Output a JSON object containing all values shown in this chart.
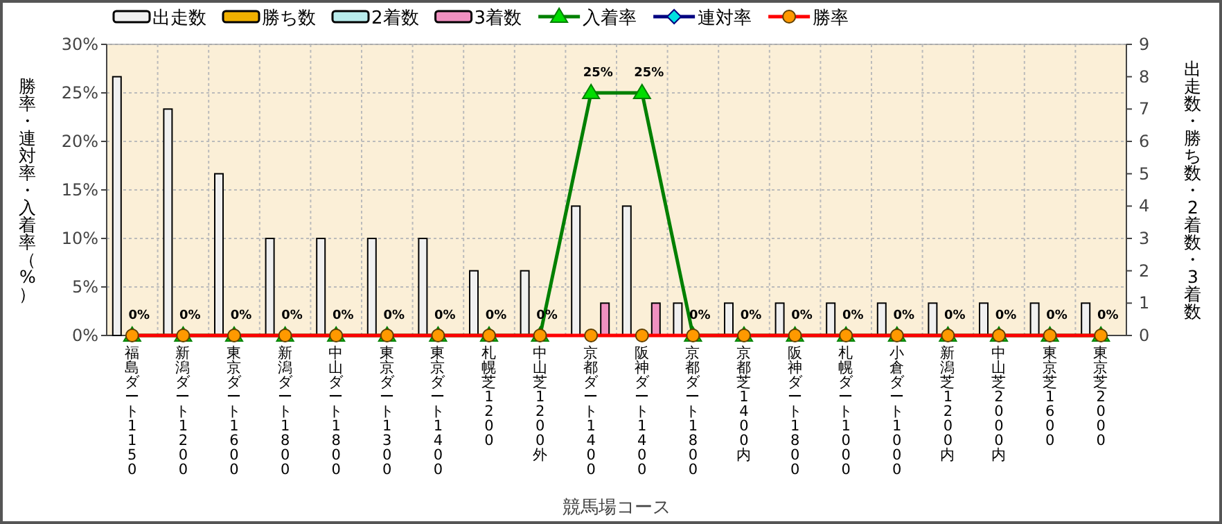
{
  "chart_data": {
    "type": "bar",
    "categories": [
      "福島ダート1150",
      "新潟ダート1200",
      "東京ダート1600",
      "新潟ダート1800",
      "中山ダート1800",
      "東京ダート1300",
      "東京ダート1400",
      "札幌芝1200",
      "中山芝1200外",
      "京都ダート1400",
      "阪神ダート1400",
      "京都ダート1800",
      "京都芝1400内",
      "阪神ダート1800",
      "札幌ダート1000",
      "小倉ダート1000",
      "新潟芝1200内",
      "中山芝2000内",
      "東京芝1600",
      "東京芝2000"
    ],
    "xlabel": "競馬場コース",
    "ylabel": "勝率・連対率・入着率（%）",
    "y2label": "出走数・勝ち数・2着数・3着数",
    "ylim": [
      0,
      30
    ],
    "yticks": [
      {
        "value": 0,
        "label": "0%"
      },
      {
        "value": 5,
        "label": "5%"
      },
      {
        "value": 10,
        "label": "10%"
      },
      {
        "value": 15,
        "label": "15%"
      },
      {
        "value": 20,
        "label": "20%"
      },
      {
        "value": 25,
        "label": "25%"
      },
      {
        "value": 30,
        "label": "30%"
      }
    ],
    "y2lim": [
      0,
      9
    ],
    "y2ticks": [
      0,
      1,
      2,
      3,
      4,
      5,
      6,
      7,
      8,
      9
    ],
    "grid": true,
    "legend": "top",
    "series": [
      {
        "name": "出走数",
        "axis": "y2",
        "color": "#f0f0f0",
        "values": [
          8,
          7,
          5,
          3,
          3,
          3,
          3,
          2,
          2,
          4,
          4,
          1,
          1,
          1,
          1,
          1,
          1,
          1,
          1,
          1
        ]
      },
      {
        "name": "勝ち数",
        "axis": "y2",
        "color": "#f0b000",
        "values": [
          0,
          0,
          0,
          0,
          0,
          0,
          0,
          0,
          0,
          0,
          0,
          0,
          0,
          0,
          0,
          0,
          0,
          0,
          0,
          0
        ]
      },
      {
        "name": "2着数",
        "axis": "y2",
        "color": "#b8ecec",
        "values": [
          0,
          0,
          0,
          0,
          0,
          0,
          0,
          0,
          0,
          0,
          0,
          0,
          0,
          0,
          0,
          0,
          0,
          0,
          0,
          0
        ]
      },
      {
        "name": "3着数",
        "axis": "y2",
        "color": "#f090c0",
        "values": [
          0,
          0,
          0,
          0,
          0,
          0,
          0,
          0,
          0,
          1,
          1,
          0,
          0,
          0,
          0,
          0,
          0,
          0,
          0,
          0
        ]
      },
      {
        "name": "入着率",
        "type": "line",
        "color": "#008000",
        "marker": "triangle",
        "values": [
          0,
          0,
          0,
          0,
          0,
          0,
          0,
          0,
          0,
          25,
          25,
          0,
          0,
          0,
          0,
          0,
          0,
          0,
          0,
          0
        ],
        "value_labels": [
          "0%",
          "0%",
          "0%",
          "0%",
          "0%",
          "0%",
          "0%",
          "0%",
          "0%",
          "25%",
          "25%",
          "0%",
          "0%",
          "0%",
          "0%",
          "0%",
          "0%",
          "0%",
          "0%",
          "0%"
        ]
      },
      {
        "name": "連対率",
        "type": "line",
        "color": "#000080",
        "marker": "diamond",
        "values": [
          null,
          null,
          null,
          null,
          null,
          null,
          null,
          null,
          null,
          null,
          null,
          null,
          null,
          null,
          null,
          null,
          null,
          null,
          null,
          null
        ]
      },
      {
        "name": "勝率",
        "type": "line",
        "color": "#ff0000",
        "marker": "circle",
        "values": [
          0,
          0,
          0,
          0,
          0,
          0,
          0,
          0,
          0,
          0,
          0,
          0,
          0,
          0,
          0,
          0,
          0,
          0,
          0,
          0
        ]
      }
    ]
  }
}
